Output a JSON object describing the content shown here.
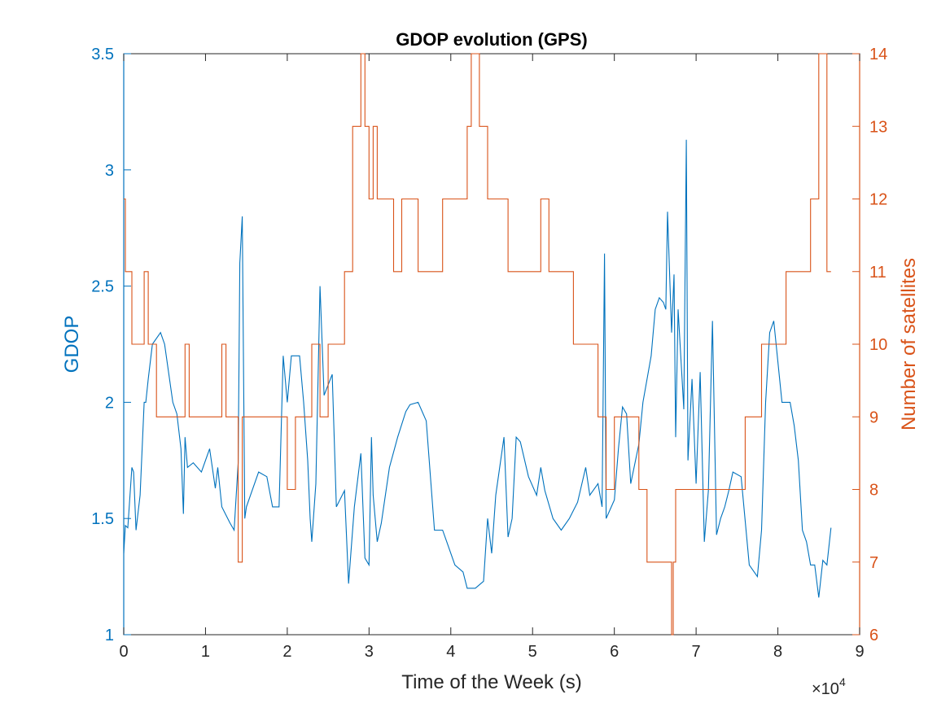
{
  "chart_data": {
    "type": "line",
    "title": "GDOP evolution (GPS)",
    "xlabel": "Time of the Week (s)",
    "x_exponent_label": "×10",
    "x_exponent_power": "4",
    "xlim": [
      0,
      9
    ],
    "x_ticks": [
      "0",
      "1",
      "2",
      "3",
      "4",
      "5",
      "6",
      "7",
      "8",
      "9"
    ],
    "x_scale_note": "x values in units of 10^4 s",
    "grid": false,
    "legend": "none",
    "y_left": {
      "label": "GDOP",
      "lim": [
        1,
        3.5
      ],
      "ticks": [
        "1",
        "1.5",
        "2",
        "2.5",
        "3",
        "3.5"
      ],
      "color": "#0072BD"
    },
    "y_right": {
      "label": "Number of satellites",
      "lim": [
        6,
        14
      ],
      "ticks": [
        "6",
        "7",
        "8",
        "9",
        "10",
        "11",
        "12",
        "13",
        "14"
      ],
      "color": "#D95319"
    },
    "series": [
      {
        "axis": "left",
        "color": "#0072BD",
        "x": [
          0,
          0.02,
          0.05,
          0.1,
          0.12,
          0.15,
          0.2,
          0.25,
          0.27,
          0.3,
          0.35,
          0.45,
          0.5,
          0.6,
          0.65,
          0.7,
          0.73,
          0.75,
          0.78,
          0.85,
          0.95,
          1.05,
          1.12,
          1.15,
          1.2,
          1.3,
          1.35,
          1.4,
          1.42,
          1.45,
          1.48,
          1.5,
          1.55,
          1.65,
          1.75,
          1.82,
          1.9,
          1.95,
          2.0,
          2.05,
          2.15,
          2.2,
          2.25,
          2.28,
          2.3,
          2.35,
          2.4,
          2.45,
          2.55,
          2.6,
          2.7,
          2.75,
          2.82,
          2.9,
          2.95,
          3.0,
          3.03,
          3.05,
          3.1,
          3.15,
          3.25,
          3.35,
          3.45,
          3.5,
          3.6,
          3.7,
          3.8,
          3.9,
          3.95,
          4.05,
          4.15,
          4.2,
          4.3,
          4.4,
          4.45,
          4.5,
          4.55,
          4.65,
          4.7,
          4.75,
          4.8,
          4.85,
          4.95,
          5.05,
          5.1,
          5.15,
          5.25,
          5.35,
          5.45,
          5.55,
          5.65,
          5.7,
          5.8,
          5.85,
          5.88,
          5.9,
          6.0,
          6.05,
          6.1,
          6.15,
          6.2,
          6.3,
          6.35,
          6.45,
          6.5,
          6.55,
          6.6,
          6.63,
          6.65,
          6.7,
          6.73,
          6.75,
          6.78,
          6.85,
          6.88,
          6.9,
          6.95,
          7.0,
          7.05,
          7.1,
          7.15,
          7.2,
          7.25,
          7.3,
          7.35,
          7.4,
          7.45,
          7.55,
          7.65,
          7.75,
          7.8,
          7.85,
          7.9,
          7.95,
          8.05,
          8.15,
          8.2,
          8.25,
          8.3,
          8.35,
          8.4,
          8.45,
          8.5,
          8.55,
          8.6,
          8.65
        ],
        "y": [
          1.35,
          1.47,
          1.46,
          1.72,
          1.7,
          1.45,
          1.6,
          2.0,
          2.0,
          2.1,
          2.25,
          2.3,
          2.25,
          2.0,
          1.95,
          1.8,
          1.52,
          1.85,
          1.72,
          1.74,
          1.7,
          1.8,
          1.63,
          1.72,
          1.55,
          1.48,
          1.45,
          1.74,
          2.6,
          2.8,
          1.5,
          1.55,
          1.6,
          1.7,
          1.68,
          1.55,
          1.55,
          2.2,
          2.0,
          2.2,
          2.2,
          2.0,
          1.75,
          1.5,
          1.4,
          1.65,
          2.5,
          2.03,
          2.12,
          1.55,
          1.62,
          1.22,
          1.55,
          1.78,
          1.33,
          1.3,
          1.85,
          1.6,
          1.4,
          1.48,
          1.72,
          1.85,
          1.96,
          1.99,
          2.0,
          1.92,
          1.45,
          1.45,
          1.4,
          1.3,
          1.27,
          1.2,
          1.2,
          1.23,
          1.5,
          1.35,
          1.6,
          1.85,
          1.42,
          1.5,
          1.85,
          1.83,
          1.68,
          1.6,
          1.72,
          1.62,
          1.5,
          1.45,
          1.5,
          1.57,
          1.72,
          1.6,
          1.65,
          1.55,
          2.64,
          1.5,
          1.58,
          1.8,
          1.98,
          1.95,
          1.65,
          1.82,
          2.0,
          2.2,
          2.4,
          2.45,
          2.43,
          2.4,
          2.82,
          2.3,
          2.55,
          1.85,
          2.4,
          1.97,
          3.13,
          1.75,
          2.1,
          1.65,
          2.13,
          1.4,
          1.62,
          2.35,
          1.43,
          1.5,
          1.55,
          1.62,
          1.7,
          1.68,
          1.3,
          1.25,
          1.45,
          2.0,
          2.3,
          2.35,
          2.0,
          2.0,
          1.9,
          1.75,
          1.45,
          1.4,
          1.3,
          1.3,
          1.16,
          1.32,
          1.3,
          1.46
        ]
      },
      {
        "axis": "right",
        "color": "#D95319",
        "step": true,
        "x": [
          0,
          0.02,
          0.1,
          0.2,
          0.25,
          0.3,
          0.4,
          0.75,
          0.8,
          1.1,
          1.2,
          1.25,
          1.4,
          1.45,
          1.6,
          1.9,
          2.0,
          2.1,
          2.3,
          2.4,
          2.5,
          2.7,
          2.8,
          2.9,
          2.95,
          3.0,
          3.05,
          3.1,
          3.3,
          3.4,
          3.6,
          3.8,
          3.9,
          4.2,
          4.25,
          4.35,
          4.45,
          4.6,
          4.7,
          5.0,
          5.1,
          5.2,
          5.4,
          5.5,
          5.6,
          5.8,
          5.9,
          6.0,
          6.1,
          6.3,
          6.4,
          6.5,
          6.7,
          6.72,
          6.75,
          6.8,
          7.3,
          7.45,
          7.6,
          7.8,
          7.9,
          8.1,
          8.3,
          8.4,
          8.5,
          8.6
        ],
        "y": [
          12,
          11,
          10,
          10,
          11,
          10,
          9,
          10,
          9,
          9,
          10,
          9,
          7,
          9,
          9,
          9,
          8,
          9,
          10,
          9,
          10,
          11,
          13,
          14,
          13,
          12,
          13,
          12,
          11,
          12,
          11,
          11,
          12,
          13,
          14,
          13,
          12,
          12,
          11,
          11,
          12,
          11,
          11,
          10,
          10,
          9,
          8,
          9,
          9,
          8,
          7,
          7,
          6,
          7,
          8,
          8,
          8,
          8,
          9,
          10,
          10,
          11,
          11,
          12,
          14,
          11
        ]
      }
    ]
  }
}
